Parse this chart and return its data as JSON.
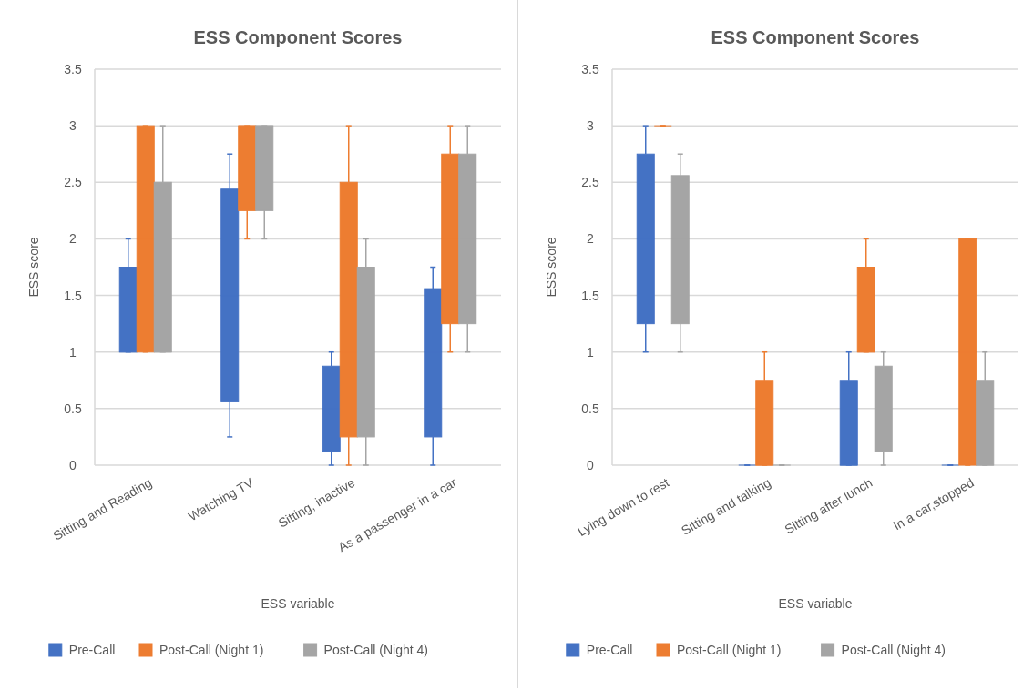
{
  "chart_data": [
    {
      "type": "box",
      "title": "ESS Component Scores",
      "xlabel": "ESS variable",
      "ylabel": "ESS score",
      "categories": [
        "Sitting and Reading",
        "Watching TV",
        "Sitting, inactive",
        "As a passenger in a car"
      ],
      "ylim": [
        0,
        3.5
      ],
      "yticks": [
        0,
        0.5,
        1,
        1.5,
        2,
        2.5,
        3,
        3.5
      ],
      "grid": "y",
      "legend": "bottom",
      "series": [
        {
          "name": "Pre-Call",
          "color": "#4472c4",
          "boxes": [
            {
              "low": 1,
              "q1": 1,
              "median": 1,
              "q3": 1.75,
              "high": 2
            },
            {
              "low": 0.25,
              "q1": 0.56,
              "median": 1.5,
              "q3": 2.44,
              "high": 2.75
            },
            {
              "low": 0,
              "q1": 0.125,
              "median": 0.5,
              "q3": 0.875,
              "high": 1
            },
            {
              "low": 0,
              "q1": 0.25,
              "median": 1,
              "q3": 1.56,
              "high": 1.75
            }
          ]
        },
        {
          "name": "Post-Call (Night 1)",
          "color": "#ed7d31",
          "boxes": [
            {
              "low": 1,
              "q1": 1,
              "median": 2,
              "q3": 3,
              "high": 3
            },
            {
              "low": 2,
              "q1": 2.25,
              "median": 3,
              "q3": 3,
              "high": 3
            },
            {
              "low": 0,
              "q1": 0.25,
              "median": 1,
              "q3": 2.5,
              "high": 3
            },
            {
              "low": 1,
              "q1": 1.25,
              "median": 2,
              "q3": 2.75,
              "high": 3
            }
          ]
        },
        {
          "name": "Post-Call (Night 4)",
          "color": "#a5a5a5",
          "boxes": [
            {
              "low": 1,
              "q1": 1,
              "median": 1,
              "q3": 2.5,
              "high": 3
            },
            {
              "low": 2,
              "q1": 2.25,
              "median": 3,
              "q3": 3,
              "high": 3
            },
            {
              "low": 0,
              "q1": 0.25,
              "median": 1,
              "q3": 1.75,
              "high": 2
            },
            {
              "low": 1,
              "q1": 1.25,
              "median": 2,
              "q3": 2.75,
              "high": 3
            }
          ]
        }
      ]
    },
    {
      "type": "box",
      "title": "ESS Component Scores",
      "xlabel": "ESS variable",
      "ylabel": "ESS score",
      "categories": [
        "Lying down to rest",
        "Sitting and talking",
        "Sitting after lunch",
        "In a car,stopped"
      ],
      "ylim": [
        0,
        3.5
      ],
      "yticks": [
        0,
        0.5,
        1,
        1.5,
        2,
        2.5,
        3,
        3.5
      ],
      "grid": "y",
      "legend": "bottom",
      "series": [
        {
          "name": "Pre-Call",
          "color": "#4472c4",
          "boxes": [
            {
              "low": 1,
              "q1": 1.25,
              "median": 2,
              "q3": 2.75,
              "high": 3
            },
            {
              "low": 0,
              "q1": 0,
              "median": 0,
              "q3": 0,
              "high": 0
            },
            {
              "low": 0,
              "q1": 0,
              "median": 0,
              "q3": 0.75,
              "high": 1
            },
            {
              "low": 0,
              "q1": 0,
              "median": 0,
              "q3": 0,
              "high": 0
            }
          ]
        },
        {
          "name": "Post-Call (Night 1)",
          "color": "#ed7d31",
          "boxes": [
            {
              "low": 3,
              "q1": 3,
              "median": 3,
              "q3": 3,
              "high": 3
            },
            {
              "low": 0,
              "q1": 0,
              "median": 0,
              "q3": 0.75,
              "high": 1
            },
            {
              "low": 1,
              "q1": 1,
              "median": 1,
              "q3": 1.75,
              "high": 2
            },
            {
              "low": 0,
              "q1": 0,
              "median": 1,
              "q3": 2,
              "high": 2
            }
          ]
        },
        {
          "name": "Post-Call (Night 4)",
          "color": "#a5a5a5",
          "boxes": [
            {
              "low": 1,
              "q1": 1.25,
              "median": 2,
              "q3": 2.56,
              "high": 2.75
            },
            {
              "low": 0,
              "q1": 0,
              "median": 0,
              "q3": 0,
              "high": 0
            },
            {
              "low": 0,
              "q1": 0.125,
              "median": 0.5,
              "q3": 0.875,
              "high": 1
            },
            {
              "low": 0,
              "q1": 0,
              "median": 0,
              "q3": 0.75,
              "high": 1
            }
          ]
        }
      ]
    }
  ]
}
